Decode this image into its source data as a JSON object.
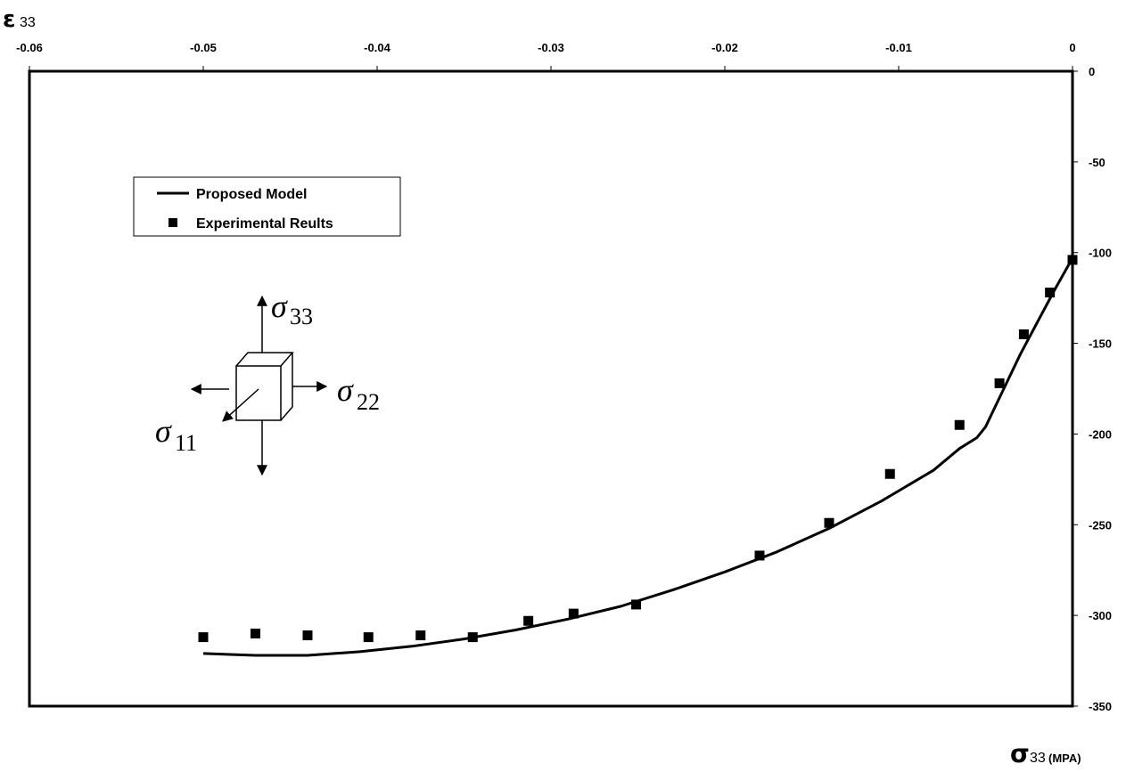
{
  "chart_data": {
    "type": "scatter",
    "title": "",
    "x_axis": {
      "label_symbol": "σ",
      "label_sub": "33",
      "label_unit": "(MPA)",
      "lim": [
        -350,
        0
      ],
      "ticks": [
        0,
        -50,
        -100,
        -150,
        -200,
        -250,
        -300,
        -350
      ],
      "position": "right"
    },
    "y_axis": {
      "label_symbol": "ε",
      "label_sub": "33",
      "lim": [
        -0.06,
        0
      ],
      "ticks": [
        -0.06,
        -0.05,
        -0.04,
        -0.03,
        -0.02,
        -0.01,
        0
      ],
      "position": "top"
    },
    "note": "Vertical axis (right side) shows σ33 values, horizontal axis (top) shows ε33 values.",
    "series": [
      {
        "name": "Proposed Model",
        "style": "line",
        "points": [
          [
            -0.05,
            -321
          ],
          [
            -0.047,
            -322
          ],
          [
            -0.044,
            -322
          ],
          [
            -0.041,
            -320
          ],
          [
            -0.038,
            -317
          ],
          [
            -0.035,
            -313
          ],
          [
            -0.032,
            -308
          ],
          [
            -0.029,
            -302
          ],
          [
            -0.026,
            -295
          ],
          [
            -0.023,
            -286
          ],
          [
            -0.02,
            -276
          ],
          [
            -0.017,
            -265
          ],
          [
            -0.014,
            -252
          ],
          [
            -0.011,
            -237
          ],
          [
            -0.008,
            -220
          ],
          [
            -0.0065,
            -208
          ],
          [
            -0.0055,
            -202
          ],
          [
            -0.005,
            -196
          ],
          [
            -0.004,
            -176
          ],
          [
            -0.003,
            -156
          ],
          [
            -0.002,
            -138
          ],
          [
            -0.001,
            -120
          ],
          [
            0,
            -103
          ]
        ]
      },
      {
        "name": "Experimental Reults",
        "style": "marker",
        "points": [
          [
            -0.05,
            -312
          ],
          [
            -0.047,
            -310
          ],
          [
            -0.044,
            -311
          ],
          [
            -0.0405,
            -312
          ],
          [
            -0.0375,
            -311
          ],
          [
            -0.0345,
            -312
          ],
          [
            -0.0313,
            -303
          ],
          [
            -0.0287,
            -299
          ],
          [
            -0.0251,
            -294
          ],
          [
            -0.018,
            -267
          ],
          [
            -0.014,
            -249
          ],
          [
            -0.0105,
            -222
          ],
          [
            -0.0065,
            -195
          ],
          [
            -0.0042,
            -172
          ],
          [
            -0.0028,
            -145
          ],
          [
            -0.0013,
            -122
          ],
          [
            0,
            -104
          ]
        ]
      }
    ],
    "legend": {
      "placement": "upper-left",
      "entries": [
        "Proposed Model",
        "Experimental Reults"
      ]
    },
    "inset_diagram": {
      "labels": {
        "s33": {
          "sym": "σ",
          "sub": "33"
        },
        "s22": {
          "sym": "σ",
          "sub": "22"
        },
        "s11": {
          "sym": "σ",
          "sub": "11"
        }
      }
    },
    "grid": false
  }
}
